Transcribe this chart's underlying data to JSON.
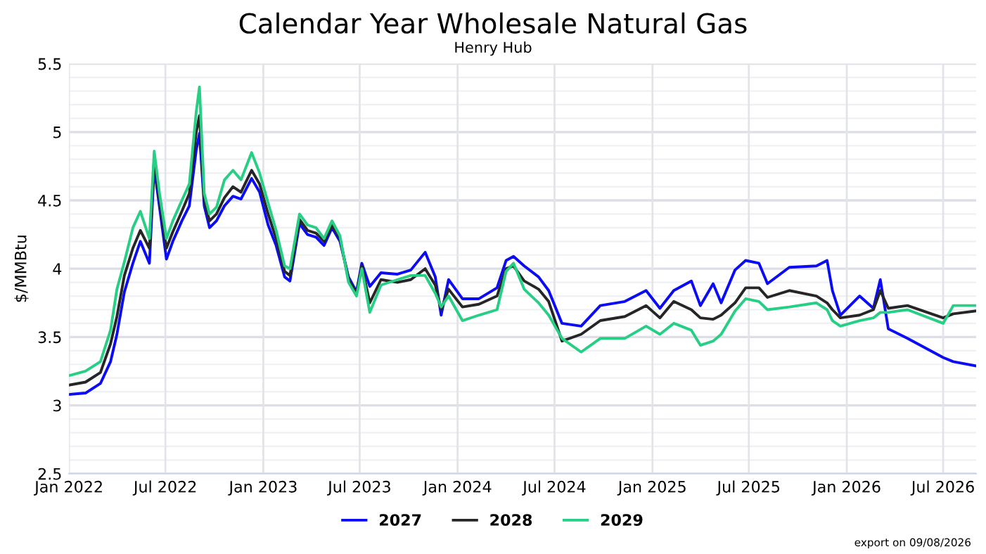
{
  "chart_data": {
    "type": "line",
    "title": "Calendar Year Wholesale Natural Gas",
    "subtitle": "Henry Hub",
    "ylabel": "$/MMBtu",
    "x": [
      "2022-01-03",
      "2022-02-01",
      "2022-03-01",
      "2022-03-20",
      "2022-04-01",
      "2022-04-15",
      "2022-05-01",
      "2022-05-15",
      "2022-06-01",
      "2022-06-10",
      "2022-06-20",
      "2022-07-03",
      "2022-07-15",
      "2022-08-01",
      "2022-08-15",
      "2022-08-28",
      "2022-09-03",
      "2022-09-12",
      "2022-09-22",
      "2022-10-05",
      "2022-10-20",
      "2022-11-05",
      "2022-11-20",
      "2022-12-10",
      "2022-12-25",
      "2023-01-10",
      "2023-01-25",
      "2023-02-10",
      "2023-02-20",
      "2023-03-10",
      "2023-03-25",
      "2023-04-10",
      "2023-04-25",
      "2023-05-10",
      "2023-05-25",
      "2023-06-10",
      "2023-06-25",
      "2023-07-05",
      "2023-07-20",
      "2023-08-10",
      "2023-09-10",
      "2023-10-05",
      "2023-11-01",
      "2023-11-20",
      "2023-12-01",
      "2023-12-15",
      "2024-01-10",
      "2024-02-10",
      "2024-03-15",
      "2024-04-01",
      "2024-04-15",
      "2024-05-05",
      "2024-06-01",
      "2024-06-20",
      "2024-07-15",
      "2024-08-20",
      "2024-09-25",
      "2024-11-10",
      "2024-12-20",
      "2025-01-15",
      "2025-02-10",
      "2025-03-15",
      "2025-04-01",
      "2025-04-25",
      "2025-05-10",
      "2025-06-05",
      "2025-06-25",
      "2025-07-20",
      "2025-08-05",
      "2025-09-15",
      "2025-11-05",
      "2025-11-25",
      "2025-12-05",
      "2025-12-20",
      "2026-01-25",
      "2026-02-20",
      "2026-03-05",
      "2026-03-20",
      "2026-04-25",
      "2026-07-01",
      "2026-07-20",
      "2026-08-30"
    ],
    "series": [
      {
        "name": "2027",
        "color": "#0b0bf5",
        "values": [
          3.08,
          3.09,
          3.16,
          3.32,
          3.52,
          3.83,
          4.04,
          4.2,
          4.04,
          4.74,
          4.45,
          4.07,
          4.2,
          4.35,
          4.46,
          4.87,
          4.99,
          4.46,
          4.3,
          4.35,
          4.46,
          4.53,
          4.51,
          4.66,
          4.56,
          4.32,
          4.17,
          3.94,
          3.91,
          4.33,
          4.25,
          4.23,
          4.17,
          4.3,
          4.2,
          3.94,
          3.83,
          4.04,
          3.87,
          3.97,
          3.96,
          3.99,
          4.12,
          3.94,
          3.66,
          3.92,
          3.78,
          3.78,
          3.86,
          4.06,
          4.09,
          4.02,
          3.94,
          3.84,
          3.6,
          3.58,
          3.73,
          3.76,
          3.84,
          3.71,
          3.84,
          3.91,
          3.73,
          3.89,
          3.75,
          3.99,
          4.06,
          4.04,
          3.89,
          4.01,
          4.02,
          4.06,
          3.84,
          3.66,
          3.8,
          3.71,
          3.92,
          3.56,
          3.49,
          3.35,
          3.32,
          3.29
        ]
      },
      {
        "name": "2028",
        "color": "#262626",
        "values": [
          3.15,
          3.17,
          3.24,
          3.45,
          3.65,
          3.95,
          4.15,
          4.28,
          4.15,
          4.8,
          4.5,
          4.15,
          4.27,
          4.42,
          4.55,
          5.0,
          5.12,
          4.5,
          4.35,
          4.4,
          4.52,
          4.6,
          4.56,
          4.72,
          4.62,
          4.4,
          4.22,
          3.98,
          3.95,
          4.36,
          4.28,
          4.26,
          4.2,
          4.32,
          4.22,
          3.92,
          3.82,
          4.02,
          3.75,
          3.92,
          3.9,
          3.92,
          4.0,
          3.88,
          3.7,
          3.85,
          3.72,
          3.74,
          3.8,
          4.0,
          4.02,
          3.91,
          3.85,
          3.76,
          3.47,
          3.52,
          3.62,
          3.65,
          3.73,
          3.64,
          3.76,
          3.7,
          3.64,
          3.63,
          3.66,
          3.75,
          3.86,
          3.86,
          3.79,
          3.84,
          3.8,
          3.75,
          3.7,
          3.64,
          3.66,
          3.7,
          3.84,
          3.71,
          3.73,
          3.64,
          3.67,
          3.69
        ]
      },
      {
        "name": "2029",
        "color": "#27cf85",
        "values": [
          3.22,
          3.25,
          3.32,
          3.55,
          3.85,
          4.05,
          4.3,
          4.42,
          4.22,
          4.86,
          4.55,
          4.22,
          4.35,
          4.5,
          4.62,
          5.15,
          5.33,
          4.55,
          4.4,
          4.45,
          4.65,
          4.72,
          4.65,
          4.85,
          4.7,
          4.48,
          4.28,
          4.02,
          4.0,
          4.4,
          4.32,
          4.3,
          4.22,
          4.35,
          4.24,
          3.9,
          3.8,
          4.0,
          3.68,
          3.88,
          3.92,
          3.95,
          3.95,
          3.82,
          3.72,
          3.8,
          3.62,
          3.66,
          3.7,
          3.98,
          4.04,
          3.85,
          3.75,
          3.66,
          3.49,
          3.39,
          3.49,
          3.49,
          3.58,
          3.52,
          3.6,
          3.55,
          3.44,
          3.47,
          3.52,
          3.69,
          3.78,
          3.76,
          3.7,
          3.72,
          3.75,
          3.7,
          3.62,
          3.58,
          3.62,
          3.64,
          3.68,
          3.68,
          3.7,
          3.6,
          3.73,
          3.73
        ]
      }
    ],
    "xlim": [
      "2022-01-01",
      "2026-09-01"
    ],
    "xticks": [
      {
        "value": "2022-01-01",
        "label": "Jan 2022"
      },
      {
        "value": "2022-07-01",
        "label": "Jul 2022"
      },
      {
        "value": "2023-01-01",
        "label": "Jan 2023"
      },
      {
        "value": "2023-07-01",
        "label": "Jul 2023"
      },
      {
        "value": "2024-01-01",
        "label": "Jan 2024"
      },
      {
        "value": "2024-07-01",
        "label": "Jul 2024"
      },
      {
        "value": "2025-01-01",
        "label": "Jan 2025"
      },
      {
        "value": "2025-07-01",
        "label": "Jul 2025"
      },
      {
        "value": "2026-01-01",
        "label": "Jan 2026"
      },
      {
        "value": "2026-07-01",
        "label": "Jul 2026"
      }
    ],
    "ylim": [
      2.5,
      5.5
    ],
    "yticks": [
      2.5,
      {
        "value": 2.6,
        "label": null
      },
      {
        "value": 2.7,
        "label": null
      },
      {
        "value": 2.8,
        "label": null
      },
      {
        "value": 2.9,
        "label": null
      },
      3,
      {
        "value": 3.1,
        "label": null
      },
      {
        "value": 3.2,
        "label": null
      },
      {
        "value": 3.3,
        "label": null
      },
      {
        "value": 3.4,
        "label": null
      },
      3.5,
      {
        "value": 3.6,
        "label": null
      },
      {
        "value": 3.7,
        "label": null
      },
      {
        "value": 3.8,
        "label": null
      },
      {
        "value": 3.9,
        "label": null
      },
      4,
      {
        "value": 4.1,
        "label": null
      },
      {
        "value": 4.2,
        "label": null
      },
      {
        "value": 4.3,
        "label": null
      },
      {
        "value": 4.4,
        "label": null
      },
      4.5,
      {
        "value": 4.6,
        "label": null
      },
      {
        "value": 4.7,
        "label": null
      },
      {
        "value": 4.8,
        "label": null
      },
      {
        "value": 4.9,
        "label": null
      },
      5,
      {
        "value": 5.1,
        "label": null
      },
      {
        "value": 5.2,
        "label": null
      },
      {
        "value": 5.3,
        "label": null
      },
      {
        "value": 5.4,
        "label": null
      },
      5.5
    ],
    "grid": true,
    "legend": "bottom",
    "marker": "none",
    "line_style": "solid",
    "annotations": [
      "export on 09/08/2026"
    ]
  }
}
